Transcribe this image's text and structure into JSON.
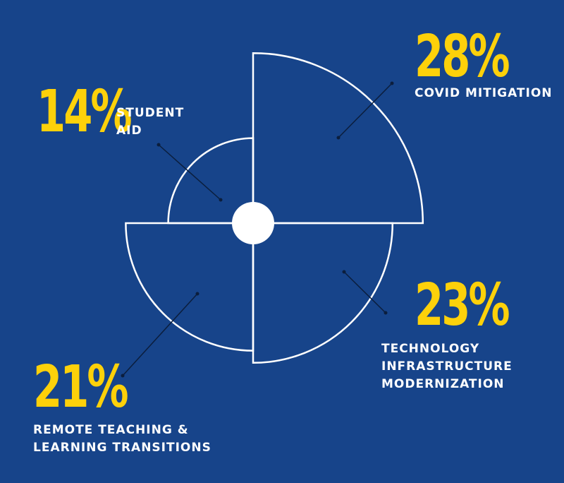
{
  "chart_data": {
    "type": "pie",
    "slices": [
      {
        "category": "COVID MITIGATION",
        "value": 28,
        "value_label": "28%"
      },
      {
        "category": "TECHNOLOGY\nINFRASTRUCTURE\nMODERNIZATION",
        "value": 23,
        "value_label": "23%"
      },
      {
        "category": "REMOTE TEACHING &\nLEARNING TRANSITIONS",
        "value": 21,
        "value_label": "21%"
      },
      {
        "category": "STUDENT\nAID",
        "value": 14,
        "value_label": "14%"
      }
    ]
  },
  "colors": {
    "background": "#17448a",
    "outline": "#ffffff",
    "value_text": "#fdd10a",
    "label_text": "#ffffff",
    "leader_line": "#0b1e3d"
  }
}
